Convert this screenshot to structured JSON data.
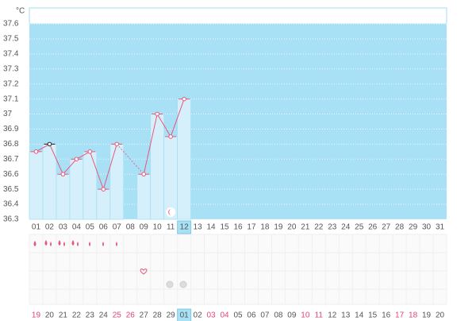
{
  "chart_data": {
    "type": "line",
    "unit": "°C",
    "categories": [
      "01",
      "02",
      "03",
      "04",
      "05",
      "06",
      "07",
      "08",
      "09",
      "10",
      "11",
      "12",
      "13",
      "14",
      "15",
      "16",
      "17",
      "18",
      "19",
      "20",
      "21",
      "22",
      "23",
      "24",
      "25",
      "26",
      "27",
      "28",
      "29",
      "30",
      "31"
    ],
    "values": [
      36.75,
      36.8,
      36.6,
      36.7,
      36.75,
      36.5,
      36.8,
      null,
      36.6,
      37.0,
      36.85,
      37.1,
      null,
      null,
      null,
      null,
      null,
      null,
      null,
      null,
      null,
      null,
      null,
      null,
      null,
      null,
      null,
      null,
      null,
      null,
      null
    ],
    "ylim": [
      36.3,
      37.6
    ],
    "yticks": [
      36.3,
      36.4,
      36.5,
      36.6,
      36.7,
      36.8,
      36.9,
      37,
      37.1,
      37.2,
      37.3,
      37.4,
      37.5,
      37.6
    ],
    "color": "#e8567a",
    "bar_color": "#d6f0fb",
    "background_color": "#a8e0f5",
    "grid": true,
    "selected_category": "12",
    "dates": [
      "19",
      "20",
      "21",
      "22",
      "23",
      "24",
      "25",
      "26",
      "27",
      "28",
      "29",
      "01",
      "02",
      "03",
      "04",
      "05",
      "06",
      "07",
      "08",
      "09",
      "10",
      "11",
      "12",
      "13",
      "14",
      "15",
      "16",
      "17",
      "18",
      "19",
      "20"
    ],
    "red_dates": [
      true,
      false,
      false,
      false,
      false,
      false,
      true,
      true,
      false,
      false,
      false,
      false,
      false,
      true,
      true,
      false,
      false,
      false,
      false,
      false,
      true,
      true,
      false,
      false,
      false,
      false,
      false,
      true,
      true,
      false,
      false
    ],
    "red_color": "#e0457b"
  }
}
